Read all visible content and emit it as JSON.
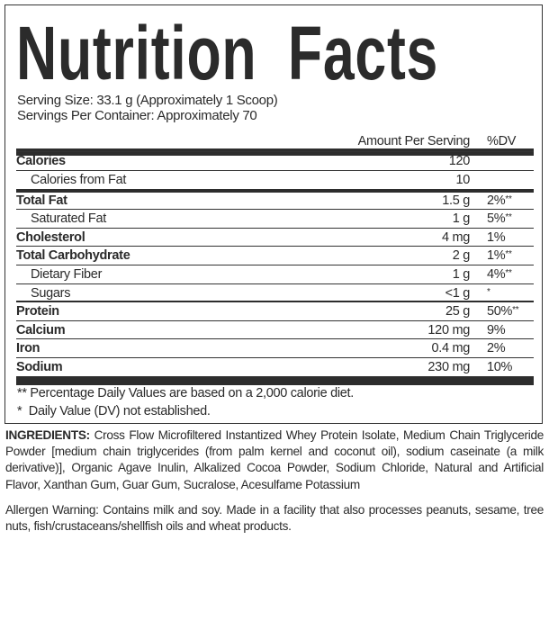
{
  "title": "Nutrition Facts",
  "serving_size": "Serving Size: 33.1 g (Approximately 1 Scoop)",
  "servings_per_container": "Servings Per Container: Approximately 70",
  "header": {
    "amount": "Amount Per Serving",
    "dv": "%DV"
  },
  "rows": [
    {
      "label": "Calories",
      "amount": "120",
      "dv": "",
      "mark": ""
    },
    {
      "label": "Calories from Fat",
      "amount": "10",
      "dv": "",
      "mark": ""
    },
    {
      "label": "Total Fat",
      "amount": "1.5 g",
      "dv": "2%",
      "mark": "**"
    },
    {
      "label": "Saturated Fat",
      "amount": "1 g",
      "dv": "5%",
      "mark": "**"
    },
    {
      "label": "Cholesterol",
      "amount": "4 mg",
      "dv": "1%",
      "mark": ""
    },
    {
      "label": "Total Carbohydrate",
      "amount": "2 g",
      "dv": "1%",
      "mark": "**"
    },
    {
      "label": "Dietary Fiber",
      "amount": "1 g",
      "dv": "4%",
      "mark": "**"
    },
    {
      "label": "Sugars",
      "amount": "<1 g",
      "dv": "",
      "mark": "*"
    },
    {
      "label": "Protein",
      "amount": "25 g",
      "dv": "50%",
      "mark": "**"
    },
    {
      "label": "Calcium",
      "amount": "120 mg",
      "dv": "9%",
      "mark": ""
    },
    {
      "label": "Iron",
      "amount": "0.4 mg",
      "dv": "2%",
      "mark": ""
    },
    {
      "label": "Sodium",
      "amount": "230 mg",
      "dv": "10%",
      "mark": ""
    }
  ],
  "footnotes": {
    "double_star": "** Percentage Daily Values are based on a 2,000 calorie diet.",
    "single_star": "*  Daily Value (DV) not established."
  },
  "ingredients": {
    "label": "INGREDIENTS:",
    "text": "Cross Flow Microfiltered Instantized Whey Protein Isolate, Medium Chain Triglyceride Powder [medium chain triglycerides (from palm kernel and coconut oil), sodium caseinate (a milk derivative)], Organic Agave Inulin, Alkalized Cocoa Powder, Sodium Chloride, Natural and Artificial Flavor, Xanthan Gum, Guar Gum, Sucralose, Acesulfame Potassium"
  },
  "allergen": "Allergen Warning: Contains milk and soy. Made in a facility that also processes peanuts, sesame, tree nuts, fish/crustaceans/shellfish oils and wheat products."
}
